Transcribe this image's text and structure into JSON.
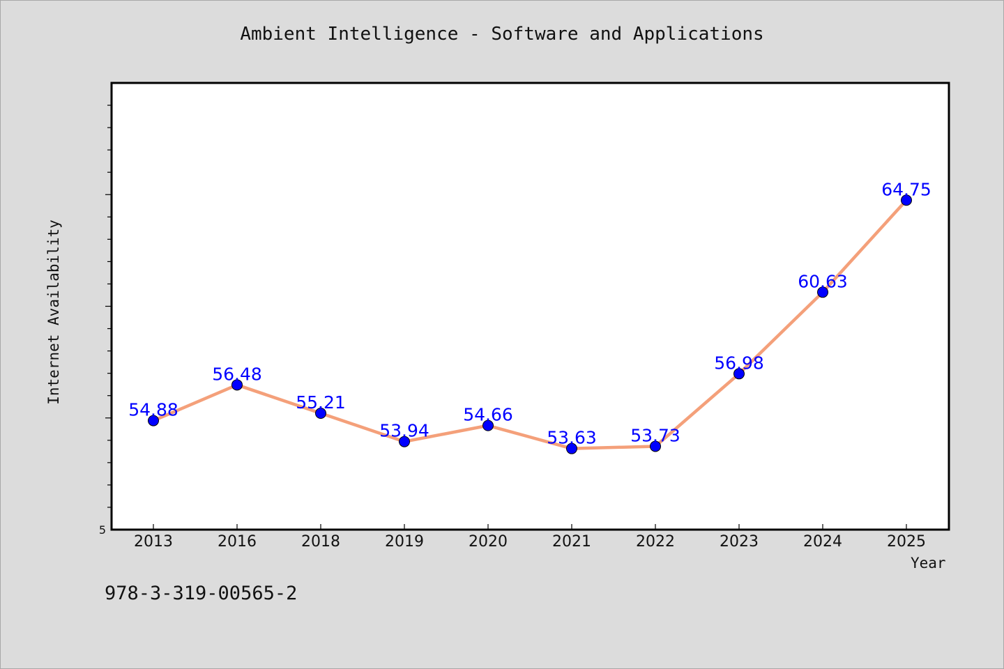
{
  "chart_data": {
    "type": "line",
    "title": "Ambient Intelligence - Software and Applications",
    "xlabel": "Year",
    "ylabel": "Internet Availability",
    "categories": [
      "2013",
      "2016",
      "2018",
      "2019",
      "2020",
      "2021",
      "2022",
      "2023",
      "2024",
      "2025"
    ],
    "series": [
      {
        "values": [
          54.88,
          56.48,
          55.21,
          53.94,
          54.66,
          53.63,
          53.73,
          56.98,
          60.63,
          64.75
        ],
        "labels": [
          "54.88",
          "56.48",
          "55.21",
          "53.94",
          "54.66",
          "53.63",
          "53.73",
          "56.98",
          "60.63",
          "64.75"
        ],
        "line_color": "#f4a07a",
        "marker_color": "#0000ff"
      }
    ],
    "y_tick_label": "5",
    "ylim": [
      50,
      70
    ],
    "grid": false,
    "legend": "none"
  },
  "footer_text": "978-3-319-00565-2"
}
